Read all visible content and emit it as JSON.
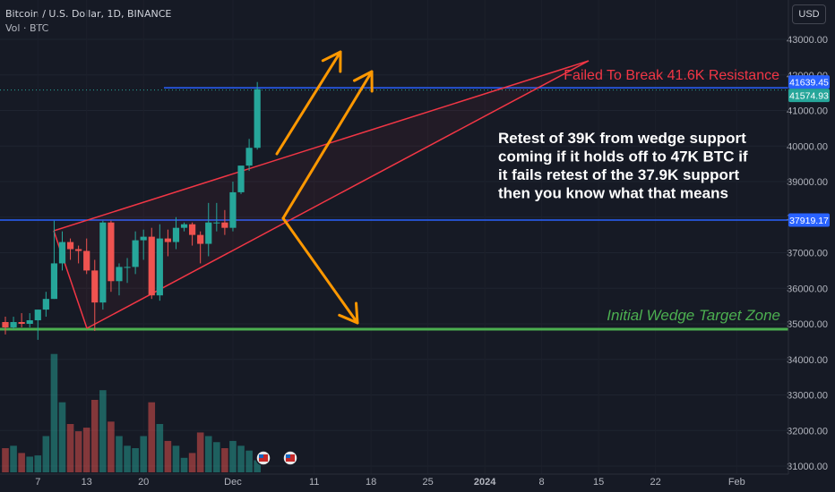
{
  "header": {
    "title": "Bitcoin / U.S. Dollar, 1D, BINANCE",
    "volume_label": "Vol · BTC",
    "currency_button": "USD"
  },
  "colors": {
    "background": "#161a25",
    "up": "#26a69a",
    "down": "#ef5350",
    "resistance_line": "#2962ff",
    "target_line": "#4caf50",
    "wedge": "#f23645",
    "arrows": "#ff9800",
    "annotation_text": "#ffffff",
    "resistance_text": "#f23645",
    "target_text": "#4caf50"
  },
  "chart_data": {
    "type": "candlestick",
    "symbol": "Bitcoin / U.S. Dollar",
    "interval": "1D",
    "exchange": "BINANCE",
    "ylim": [
      30800,
      43450
    ],
    "y_ticks": [
      31000,
      32000,
      33000,
      34000,
      35000,
      36000,
      37000,
      38000,
      39000,
      40000,
      41000,
      42000,
      43000
    ],
    "y_tick_labels": [
      "31000.00",
      "32000.00",
      "33000.00",
      "34000.00",
      "35000.00",
      "36000.00",
      "37000.00",
      "38000.00",
      "39000.00",
      "40000.00",
      "41000.00",
      "42000.00",
      "43000.00"
    ],
    "x_tick_labels": [
      "7",
      "13",
      "20",
      "Dec",
      "11",
      "18",
      "25",
      "2024",
      "8",
      "15",
      "22",
      "Feb"
    ],
    "candles": [
      {
        "date": "2023-11-03",
        "o": 35050,
        "h": 35200,
        "l": 34700,
        "c": 34900
      },
      {
        "date": "2023-11-04",
        "o": 34900,
        "h": 35200,
        "l": 34850,
        "c": 35050
      },
      {
        "date": "2023-11-05",
        "o": 35050,
        "h": 35300,
        "l": 34900,
        "c": 35000
      },
      {
        "date": "2023-11-06",
        "o": 35000,
        "h": 35300,
        "l": 34900,
        "c": 35100
      },
      {
        "date": "2023-11-07",
        "o": 35100,
        "h": 35400,
        "l": 34550,
        "c": 35400
      },
      {
        "date": "2023-11-08",
        "o": 35400,
        "h": 35900,
        "l": 35200,
        "c": 35700
      },
      {
        "date": "2023-11-09",
        "o": 35700,
        "h": 37900,
        "l": 35700,
        "c": 36700
      },
      {
        "date": "2023-11-10",
        "o": 36700,
        "h": 37600,
        "l": 36500,
        "c": 37300
      },
      {
        "date": "2023-11-11",
        "o": 37300,
        "h": 37400,
        "l": 36800,
        "c": 37100
      },
      {
        "date": "2023-11-12",
        "o": 37100,
        "h": 37200,
        "l": 36700,
        "c": 37050
      },
      {
        "date": "2023-11-13",
        "o": 37050,
        "h": 37400,
        "l": 36400,
        "c": 36500
      },
      {
        "date": "2023-11-14",
        "o": 36500,
        "h": 36800,
        "l": 34800,
        "c": 35600
      },
      {
        "date": "2023-11-15",
        "o": 35600,
        "h": 37900,
        "l": 35400,
        "c": 37850
      },
      {
        "date": "2023-11-16",
        "o": 37850,
        "h": 37900,
        "l": 35900,
        "c": 36200
      },
      {
        "date": "2023-11-17",
        "o": 36200,
        "h": 36700,
        "l": 35800,
        "c": 36600
      },
      {
        "date": "2023-11-18",
        "o": 36600,
        "h": 36850,
        "l": 36150,
        "c": 36600
      },
      {
        "date": "2023-11-19",
        "o": 36600,
        "h": 37600,
        "l": 36400,
        "c": 37350
      },
      {
        "date": "2023-11-20",
        "o": 37350,
        "h": 37650,
        "l": 36800,
        "c": 37450
      },
      {
        "date": "2023-11-21",
        "o": 37450,
        "h": 37700,
        "l": 35700,
        "c": 35800
      },
      {
        "date": "2023-11-22",
        "o": 35800,
        "h": 37800,
        "l": 35650,
        "c": 37400
      },
      {
        "date": "2023-11-23",
        "o": 37400,
        "h": 37650,
        "l": 36900,
        "c": 37300
      },
      {
        "date": "2023-11-24",
        "o": 37300,
        "h": 38000,
        "l": 37100,
        "c": 37700
      },
      {
        "date": "2023-11-25",
        "o": 37700,
        "h": 37850,
        "l": 37600,
        "c": 37800
      },
      {
        "date": "2023-11-26",
        "o": 37800,
        "h": 37850,
        "l": 37200,
        "c": 37500
      },
      {
        "date": "2023-11-27",
        "o": 37500,
        "h": 37600,
        "l": 36700,
        "c": 37250
      },
      {
        "date": "2023-11-28",
        "o": 37250,
        "h": 38400,
        "l": 36900,
        "c": 37850
      },
      {
        "date": "2023-11-29",
        "o": 37850,
        "h": 38400,
        "l": 37600,
        "c": 37850
      },
      {
        "date": "2023-11-30",
        "o": 37850,
        "h": 38200,
        "l": 37500,
        "c": 37700
      },
      {
        "date": "2023-12-01",
        "o": 37700,
        "h": 39000,
        "l": 37600,
        "c": 38700
      },
      {
        "date": "2023-12-02",
        "o": 38700,
        "h": 39400,
        "l": 38650,
        "c": 39450
      },
      {
        "date": "2023-12-03",
        "o": 39450,
        "h": 40200,
        "l": 39300,
        "c": 39950
      },
      {
        "date": "2023-12-04",
        "o": 39950,
        "h": 41800,
        "l": 39900,
        "c": 41600
      }
    ],
    "volume_levels": [
      0.2,
      0.22,
      0.16,
      0.13,
      0.14,
      0.3,
      0.98,
      0.58,
      0.4,
      0.34,
      0.37,
      0.6,
      0.68,
      0.42,
      0.3,
      0.22,
      0.2,
      0.3,
      0.58,
      0.4,
      0.26,
      0.22,
      0.12,
      0.16,
      0.33,
      0.3,
      0.25,
      0.2,
      0.26,
      0.22,
      0.18,
      0.1
    ],
    "price_labels": [
      {
        "text": "41639.45",
        "value": 41639.45,
        "color": "#2962ff"
      },
      {
        "text": "41574.93",
        "value": 41574.93,
        "color": "#26a69a"
      },
      {
        "text": "37919.17",
        "value": 37919.17,
        "color": "#2962ff"
      }
    ],
    "horizontal_lines": [
      {
        "value": 41639.45,
        "color": "#2962ff"
      },
      {
        "value": 37919.17,
        "color": "#2962ff"
      },
      {
        "value": 34850,
        "color": "#4caf50"
      }
    ],
    "annotations": {
      "resistance": "Failed To Break 41.6K Resistance",
      "retest_lines": [
        "Retest of 39K from wedge support",
        "coming if it holds off to 47K BTC if",
        "it fails retest of the 37.9K support",
        "then you know what that means"
      ],
      "target_zone": "Initial Wedge Target Zone"
    }
  }
}
